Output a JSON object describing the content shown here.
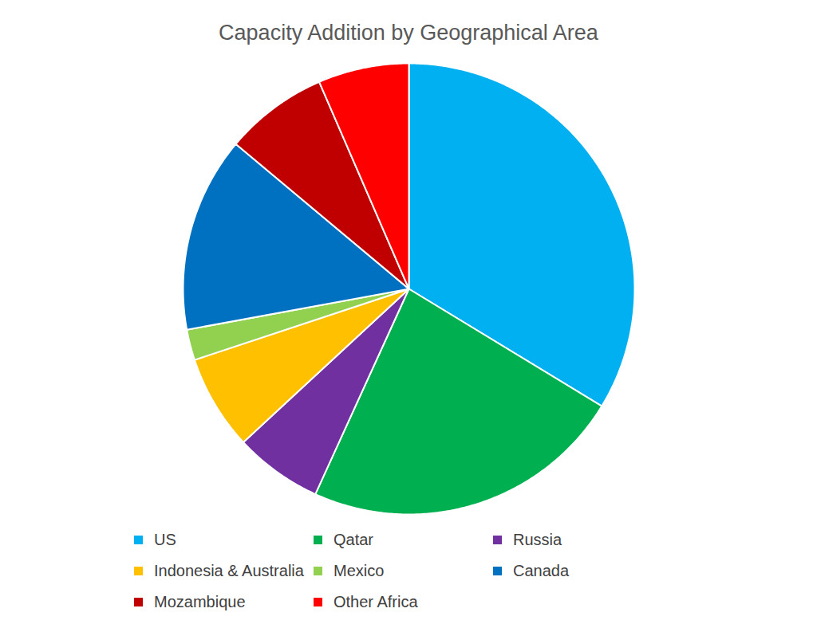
{
  "chart_data": {
    "type": "pie",
    "title": "Capacity Addition by Geographical Area",
    "categories": [
      "US",
      "Qatar",
      "Russia",
      "Indonesia & Australia",
      "Mexico",
      "Canada",
      "Mozambique",
      "Other Africa"
    ],
    "values": [
      33.7,
      23.1,
      6.3,
      6.8,
      2.2,
      14.0,
      7.4,
      6.5
    ],
    "colors": [
      "#00b0f0",
      "#00b050",
      "#7030a0",
      "#ffc000",
      "#92d050",
      "#0070c0",
      "#c00000",
      "#ff0000"
    ],
    "legend": "bottom"
  }
}
